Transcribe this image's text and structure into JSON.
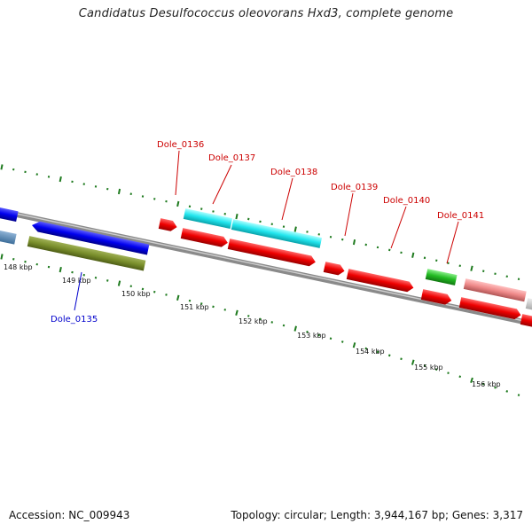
{
  "title": "Candidatus Desulfococcus oleovorans Hxd3, complete genome",
  "footer": {
    "accession": "Accession: NC_009943",
    "summary": "Topology: circular; Length: 3,944,167 bp; Genes: 3,317"
  },
  "colors": {
    "backbone": "#8a8a8a",
    "ticks": "#1e7a1e",
    "locus_red": "#cc0000",
    "locus_blue": "#0000cc"
  },
  "scale_labels": [
    "148 kbp",
    "149 kbp",
    "150 kbp",
    "151 kbp",
    "152 kbp",
    "153 kbp",
    "154 kbp",
    "155 kbp",
    "156 kbp"
  ],
  "loci": [
    {
      "name": "Dole_0135",
      "color": "blue"
    },
    {
      "name": "Dole_0136",
      "color": "red"
    },
    {
      "name": "Dole_0137",
      "color": "red"
    },
    {
      "name": "Dole_0138",
      "color": "red"
    },
    {
      "name": "Dole_0139",
      "color": "red"
    },
    {
      "name": "Dole_0140",
      "color": "red"
    },
    {
      "name": "Dole_0141",
      "color": "red"
    }
  ]
}
